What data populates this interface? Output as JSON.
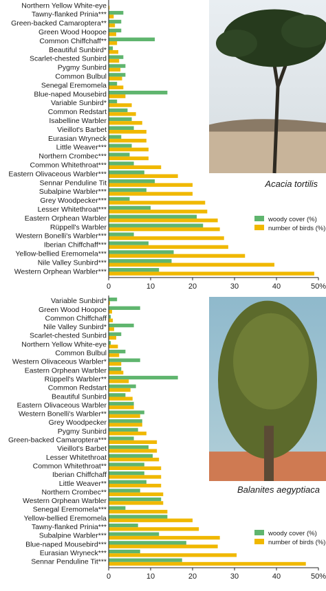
{
  "colors": {
    "woody": "#5fb56e",
    "birds": "#f0b800",
    "axis": "#222222"
  },
  "chart_data": [
    {
      "type": "bar",
      "orientation": "horizontal",
      "species_name": "Acacia tortilis",
      "legend": [
        "woody cover (%)",
        "number of birds (%)"
      ],
      "xlim": [
        0,
        50
      ],
      "xticks": [
        "0",
        "10",
        "20",
        "30",
        "40",
        "50%"
      ],
      "categories": [
        "Northern Yellow White-eye",
        "Tawny-flanked Prinia***",
        "Green-backed Camaroptera**",
        "Green Wood Hoopoe",
        "Common Chiffchaff**",
        "Beautiful Sunbird*",
        "Scarlet-chested Sunbird",
        "Pygmy Sunbird",
        "Common Bulbul",
        "Senegal Eremomela",
        "Blue-naped Mousebird",
        "Variable Sunbird*",
        "Common Redstart",
        "Isabelline Warbler",
        "Vieillot's Barbet",
        "Eurasian Wryneck",
        "Little Weaver***",
        "Northern Crombec***",
        "Common Whitethroat***",
        "Eastern Olivaceous Warbler***",
        "Sennar Penduline Tit",
        "Subalpine Warbler***",
        "Grey Woodpecker***",
        "Lesser Whitethroat***",
        "Eastern Orphean Warbler",
        "Rüppell's Warbler",
        "Western Bonelli's Warbler***",
        "Iberian Chiffchaff***",
        "Yellow-bellied Eremomela***",
        "Nile Valley Sunbird***",
        "Western Orphean Warbler***"
      ],
      "series": [
        {
          "name": "woody cover (%)",
          "values": [
            0,
            3.5,
            3,
            3,
            11,
            1,
            3.5,
            4,
            4,
            2,
            14,
            2,
            4.5,
            5.5,
            6,
            3,
            5.5,
            5,
            6,
            8.5,
            11,
            9,
            5,
            10,
            21,
            22.5,
            6,
            9.5,
            15.5,
            15,
            12
          ]
        },
        {
          "name": "number of birds (%)",
          "values": [
            0.2,
            1.2,
            1.5,
            1.8,
            2,
            2.3,
            2.5,
            2.8,
            3.2,
            3.5,
            4,
            5.5,
            6.5,
            8,
            9,
            9,
            9.5,
            9.5,
            12.5,
            16.5,
            20,
            20,
            23,
            23.5,
            26,
            26.5,
            27.5,
            28.5,
            32.5,
            39.5,
            49
          ]
        }
      ]
    },
    {
      "type": "bar",
      "orientation": "horizontal",
      "species_name": "Balanites aegyptiaca",
      "legend": [
        "woody cover (%)",
        "number of birds (%)"
      ],
      "xlim": [
        0,
        50
      ],
      "xticks": [
        "0",
        "10",
        "20",
        "30",
        "40",
        "50%"
      ],
      "categories": [
        "Variable Sunbird*",
        "Green Wood Hoopoe",
        "Common Chiffchaff",
        "Nile Valley Sunbird*",
        "Scarlet-chested Sunbird",
        "Northern Yellow White-eye",
        "Common Bulbul",
        "Western Olivaceous Warbler*",
        "Eastern Orphean Warbler",
        "Rüppell's Warbler**",
        "Common Redstart",
        "Beautiful Sunbird",
        "Eastern Olivaceous Warbler",
        "Western Bonelli's Warbler**",
        "Grey Woodpecker",
        "Pygmy Sunbird",
        "Green-backed Camaroptera***",
        "Vieillot's Barbet",
        "Lesser Whitethroat",
        "Common Whitethroat**",
        "Iberian Chiffchaff",
        "Little Weaver**",
        "Northern Crombec**",
        "Western Orphean Warbler",
        "Senegal Eremomela***",
        "Yellow-bellied Eremomela",
        "Tawny-flanked Prinia***",
        "Subalpine Warbler***",
        "Blue-naped Mousebird***",
        "Eurasian Wryneck***",
        "Sennar Penduline Tit***"
      ],
      "series": [
        {
          "name": "woody cover (%)",
          "values": [
            2,
            7.5,
            0.5,
            6,
            3,
            0.5,
            4,
            7.5,
            3,
            16.5,
            6.5,
            4,
            6,
            8.5,
            8,
            7,
            6,
            9.5,
            10.5,
            8.5,
            8.5,
            9,
            7.5,
            12.5,
            4,
            14,
            7,
            12,
            18.5,
            7.5,
            17.5
          ]
        },
        {
          "name": "number of birds (%)",
          "values": [
            0.3,
            0.8,
            1,
            1.3,
            1.8,
            2.2,
            2.5,
            3,
            3.5,
            4.8,
            5.2,
            5.7,
            6,
            7.5,
            8,
            9,
            11.5,
            11.5,
            12,
            12.5,
            12.5,
            12.5,
            13,
            13,
            14,
            20,
            21.5,
            26.5,
            26,
            30.5,
            47
          ]
        }
      ]
    }
  ]
}
